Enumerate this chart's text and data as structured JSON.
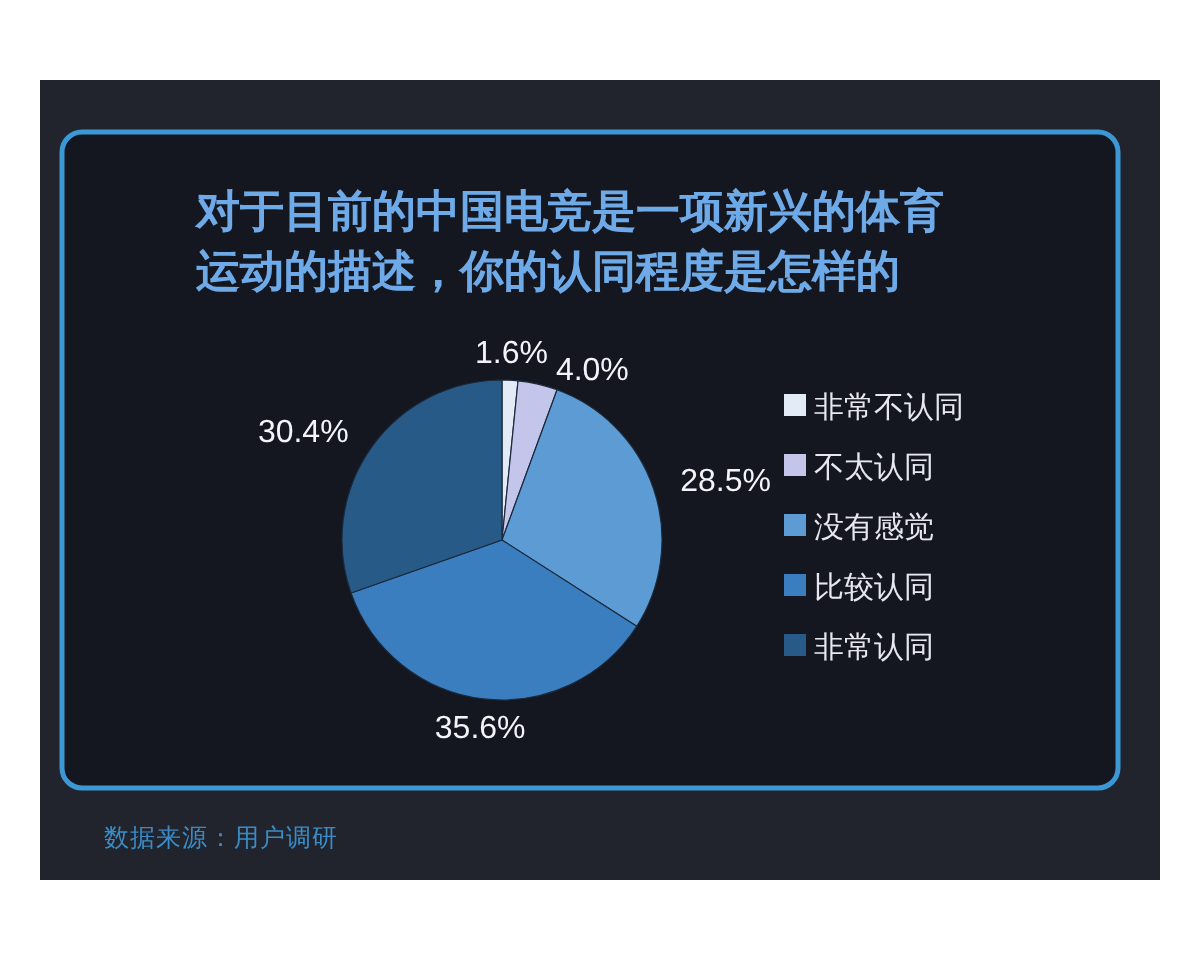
{
  "chart_data": {
    "type": "pie",
    "title": "对于目前的中国电竞是一项新兴的体育运动的描述，你的认同程度是怎样的",
    "categories": [
      "非常不认同",
      "不太认同",
      "没有感觉",
      "比较认同",
      "非常认同"
    ],
    "values": [
      1.6,
      4.0,
      28.5,
      35.6,
      30.4
    ],
    "colors": [
      "#e3ebf7",
      "#c3c6ea",
      "#5d9bd4",
      "#3b7ebf",
      "#285a88"
    ],
    "value_labels": [
      "1.6%",
      "4.0%",
      "28.5%",
      "35.6%",
      "30.4%"
    ],
    "legend": "right",
    "annotations": [
      "数据来源：用户调研"
    ]
  }
}
